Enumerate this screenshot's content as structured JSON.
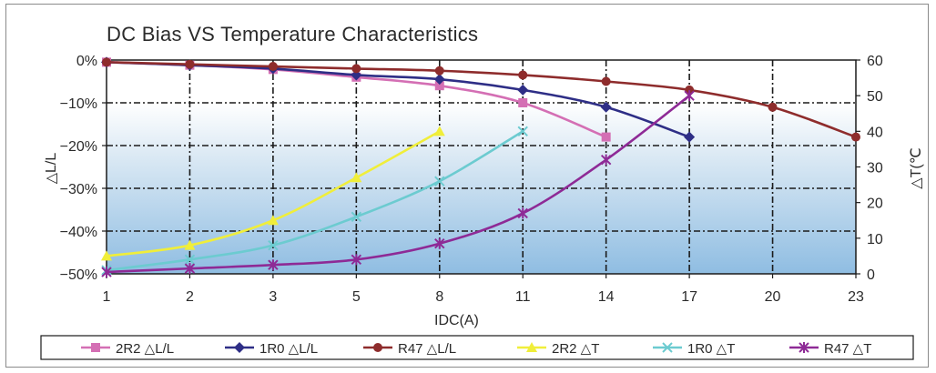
{
  "chart_data": {
    "type": "line",
    "title": "DC Bias VS Temperature Characteristics",
    "xlabel": "IDC(A)",
    "ylabel_left": "△L/L",
    "ylabel_right": "△T(℃",
    "x_ticks": [
      "1",
      "2",
      "3",
      "5",
      "8",
      "11",
      "14",
      "17",
      "20",
      "23"
    ],
    "x_tick_positions": [
      1,
      2,
      3,
      5,
      8,
      11,
      14,
      17,
      20,
      23
    ],
    "y_left_ticks": [
      "0%",
      "−10%",
      "−20%",
      "−30%",
      "−40%",
      "−50%"
    ],
    "y_left_tick_values": [
      0,
      -10,
      -20,
      -30,
      -40,
      -50
    ],
    "y_left_lim": [
      -50,
      0
    ],
    "y_right_ticks": [
      "60",
      "50",
      "40",
      "30",
      "20",
      "10",
      "0"
    ],
    "y_right_tick_values": [
      60,
      50,
      40,
      30,
      20,
      10,
      0
    ],
    "y_right_lim": [
      0,
      60
    ],
    "grid": true,
    "legend_position": "bottom",
    "series": [
      {
        "name": "2R2 △L/L",
        "axis": "left",
        "color": "#d46fb4",
        "marker": "square",
        "x": [
          1,
          2,
          3,
          5,
          8,
          11,
          14
        ],
        "y": [
          -0.5,
          -1.2,
          -2.2,
          -4,
          -6,
          -10,
          -18
        ]
      },
      {
        "name": "1R0 △L/L",
        "axis": "left",
        "color": "#2e2e86",
        "marker": "diamond",
        "x": [
          1,
          2,
          3,
          5,
          8,
          11,
          14,
          17
        ],
        "y": [
          -0.5,
          -1.2,
          -2,
          -3.5,
          -4.5,
          -7,
          -11,
          -18
        ]
      },
      {
        "name": "R47  △L/L",
        "axis": "left",
        "color": "#8e2c2c",
        "marker": "circle",
        "x": [
          1,
          2,
          3,
          5,
          8,
          11,
          14,
          17,
          20,
          23
        ],
        "y": [
          -0.5,
          -1,
          -1.5,
          -2,
          -2.5,
          -3.5,
          -5,
          -7,
          -11,
          -18
        ]
      },
      {
        "name": "2R2 △T",
        "axis": "right",
        "color": "#f0ee3a",
        "marker": "triangle",
        "x": [
          1,
          2,
          3,
          5,
          8
        ],
        "y": [
          5,
          8,
          15,
          27,
          40
        ]
      },
      {
        "name": "1R0 △T",
        "axis": "right",
        "color": "#6ccbd0",
        "marker": "cross",
        "x": [
          1,
          2,
          3,
          5,
          8,
          11
        ],
        "y": [
          1,
          4,
          8,
          16,
          26,
          40
        ]
      },
      {
        "name": "R47 △T",
        "axis": "right",
        "color": "#8e2a96",
        "marker": "star",
        "x": [
          1,
          2,
          3,
          5,
          8,
          11,
          14,
          17
        ],
        "y": [
          0.5,
          1.5,
          2.5,
          4,
          8.5,
          17,
          32,
          50
        ]
      }
    ]
  }
}
